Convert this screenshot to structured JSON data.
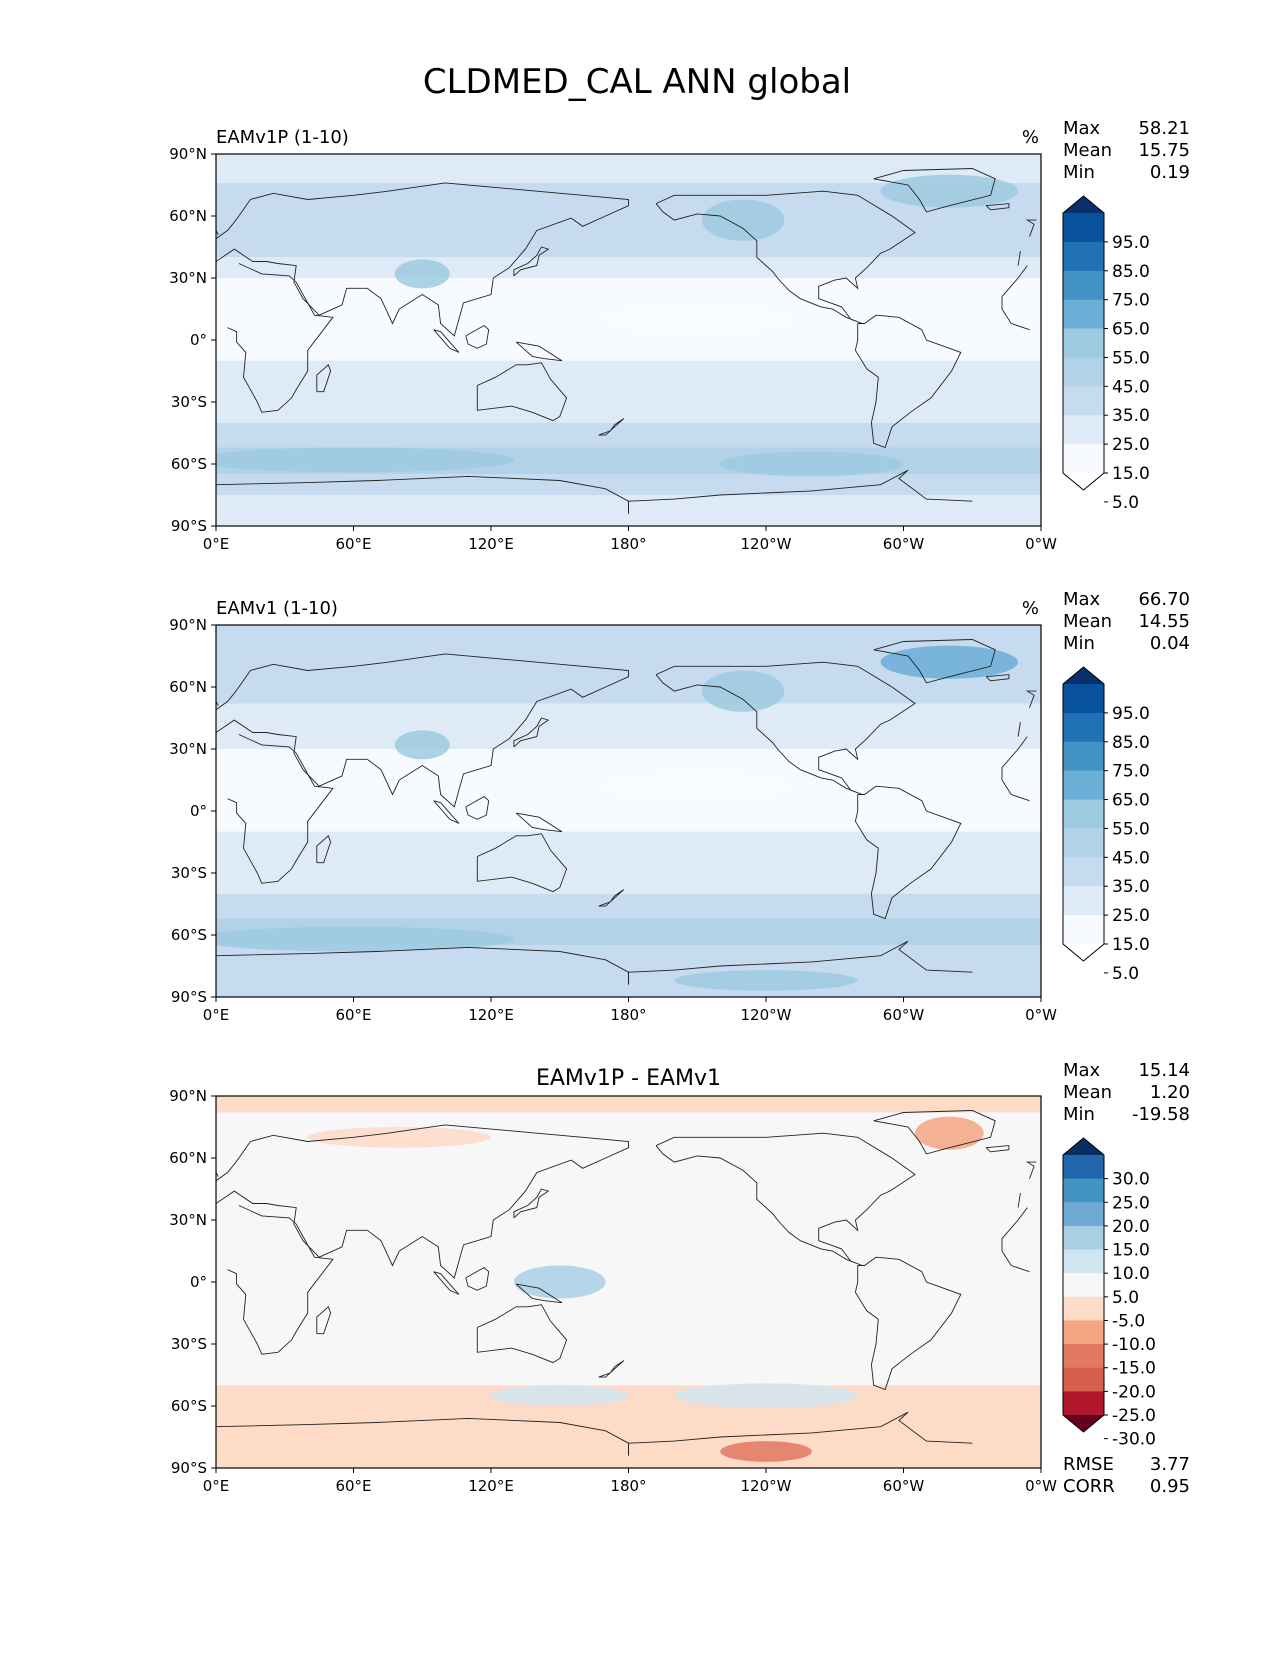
{
  "figure": {
    "title": "CLDMED_CAL ANN global"
  },
  "x_ticks": [
    "0°E",
    "60°E",
    "120°E",
    "180°",
    "120°W",
    "60°W",
    "0°W"
  ],
  "y_ticks": [
    "90°N",
    "60°N",
    "30°N",
    "0°",
    "30°S",
    "60°S",
    "90°S"
  ],
  "panels": [
    {
      "id": "test",
      "left_title": "EAMv1P (1-10)",
      "center_title": "",
      "units": "%",
      "stats": [
        {
          "label": "Max",
          "value": "58.21"
        },
        {
          "label": "Mean",
          "value": "15.75"
        },
        {
          "label": "Min",
          "value": "0.19"
        }
      ],
      "colorbar_labels": [
        "95.0",
        "85.0",
        "75.0",
        "65.0",
        "55.0",
        "45.0",
        "35.0",
        "25.0",
        "15.0",
        "5.0"
      ],
      "colors": [
        "#08306b",
        "#08519c",
        "#2171b5",
        "#4292c6",
        "#6baed6",
        "#9ecae1",
        "#b2d2e8",
        "#c6dbef",
        "#deebf7",
        "#f7fbff",
        "#ffffff"
      ]
    },
    {
      "id": "reference",
      "left_title": "EAMv1 (1-10)",
      "center_title": "",
      "units": "%",
      "stats": [
        {
          "label": "Max",
          "value": "66.70"
        },
        {
          "label": "Mean",
          "value": "14.55"
        },
        {
          "label": "Min",
          "value": "0.04"
        }
      ],
      "colorbar_labels": [
        "95.0",
        "85.0",
        "75.0",
        "65.0",
        "55.0",
        "45.0",
        "35.0",
        "25.0",
        "15.0",
        "5.0"
      ],
      "colors": [
        "#08306b",
        "#08519c",
        "#2171b5",
        "#4292c6",
        "#6baed6",
        "#9ecae1",
        "#b2d2e8",
        "#c6dbef",
        "#deebf7",
        "#f7fbff",
        "#ffffff"
      ]
    },
    {
      "id": "difference",
      "left_title": "",
      "center_title": "EAMv1P - EAMv1",
      "units": "",
      "stats": [
        {
          "label": "Max",
          "value": "15.14"
        },
        {
          "label": "Mean",
          "value": "1.20"
        },
        {
          "label": "Min",
          "value": "-19.58"
        }
      ],
      "colorbar_labels": [
        "30.0",
        "25.0",
        "20.0",
        "15.0",
        "10.0",
        "5.0",
        "-5.0",
        "-10.0",
        "-15.0",
        "-20.0",
        "-25.0",
        "-30.0"
      ],
      "colors": [
        "#053061",
        "#2166ac",
        "#4393c3",
        "#6fa9d2",
        "#a9cfe5",
        "#d1e5f0",
        "#f7f7f7",
        "#fddbc7",
        "#f4a582",
        "#e17860",
        "#d6604d",
        "#b2182b",
        "#67001f"
      ],
      "metrics": [
        {
          "label": "RMSE",
          "value": "3.77"
        },
        {
          "label": "CORR",
          "value": "0.95"
        }
      ]
    }
  ]
}
